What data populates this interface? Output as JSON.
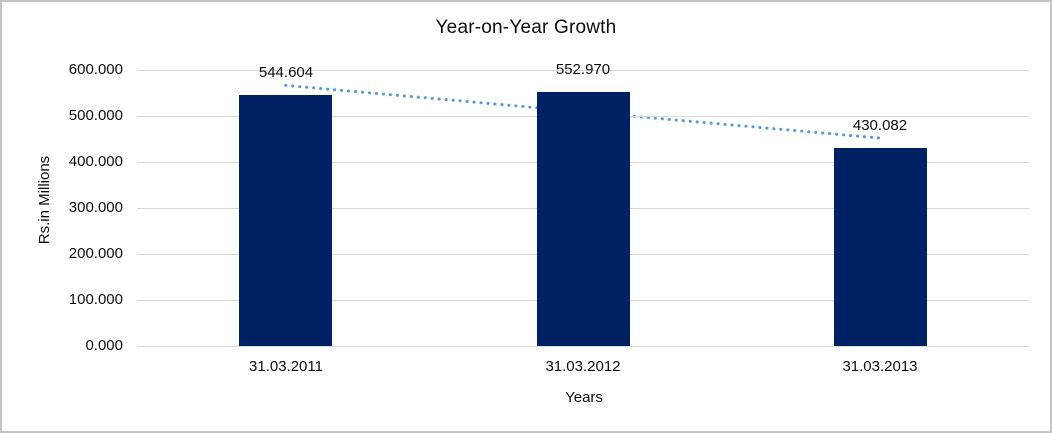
{
  "chart_data": {
    "type": "bar",
    "title": "Year-on-Year Growth",
    "xlabel": "Years",
    "ylabel": "Rs.in Millions",
    "categories": [
      "31.03.2011",
      "31.03.2012",
      "31.03.2013"
    ],
    "values": [
      544.604,
      552.97,
      430.082
    ],
    "value_labels": [
      "544.604",
      "552.970",
      "430.082"
    ],
    "ylim": [
      0,
      600
    ],
    "ytick_step": 100,
    "ytick_labels": [
      "0.000",
      "100.000",
      "200.000",
      "300.000",
      "400.000",
      "500.000",
      "600.000"
    ],
    "grid": true,
    "legend_position": "none",
    "bar_color": "#002264",
    "gridline_color": "#d9d9d9",
    "text_color": "#0d0d0d",
    "trendline": {
      "type": "linear",
      "style": "dotted",
      "color": "#5b9bd5"
    }
  }
}
